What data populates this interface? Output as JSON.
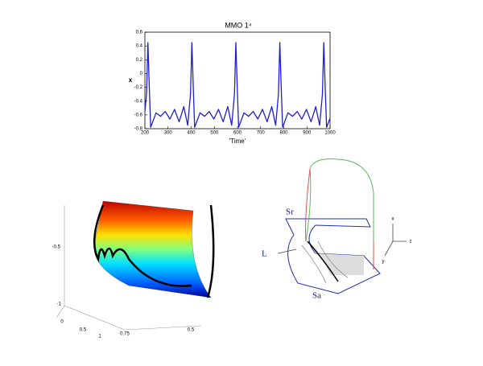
{
  "chart_data": {
    "type": "line",
    "title": "MMO 1⁴",
    "x_label": "'Time'",
    "y_label": "x",
    "x": [
      200,
      207,
      213,
      219,
      225,
      248,
      268,
      288,
      308,
      328,
      348,
      368,
      385,
      397,
      403,
      409,
      415,
      438,
      458,
      478,
      498,
      518,
      538,
      558,
      575,
      587,
      593,
      599,
      605,
      628,
      648,
      668,
      688,
      708,
      728,
      748,
      765,
      777,
      783,
      789,
      795,
      818,
      838,
      858,
      878,
      898,
      918,
      938,
      955,
      967,
      973,
      979,
      985,
      1000
    ],
    "series": [
      {
        "color": "#1f1fd0",
        "values": [
          -0.55,
          -0.3,
          0.45,
          -0.2,
          -0.78,
          -0.57,
          -0.62,
          -0.55,
          -0.66,
          -0.52,
          -0.7,
          -0.48,
          -0.75,
          -0.3,
          0.45,
          -0.2,
          -0.78,
          -0.57,
          -0.62,
          -0.55,
          -0.66,
          -0.52,
          -0.7,
          -0.48,
          -0.75,
          -0.3,
          0.45,
          -0.2,
          -0.78,
          -0.57,
          -0.62,
          -0.55,
          -0.66,
          -0.52,
          -0.7,
          -0.48,
          -0.75,
          -0.3,
          0.45,
          -0.2,
          -0.78,
          -0.57,
          -0.62,
          -0.55,
          -0.66,
          -0.52,
          -0.7,
          -0.48,
          -0.75,
          -0.3,
          0.45,
          -0.2,
          -0.78,
          -0.65
        ]
      }
    ],
    "xlim": [
      200,
      1000
    ],
    "xticks": [
      200,
      300,
      400,
      500,
      600,
      700,
      800,
      900,
      1000
    ],
    "ylim": [
      -0.8,
      0.6
    ],
    "yticks": [
      -0.8,
      -0.6,
      -0.4,
      -0.2,
      0,
      0.2,
      0.4,
      0.6
    ]
  },
  "surface_plot": {
    "tick_labels": [
      "-0.5",
      "-1",
      "0",
      "0.5",
      "1",
      "0.75",
      "0.5"
    ]
  },
  "diagram": {
    "labels": [
      "Sr",
      "L",
      "Sa",
      "x",
      "y",
      "z"
    ]
  }
}
